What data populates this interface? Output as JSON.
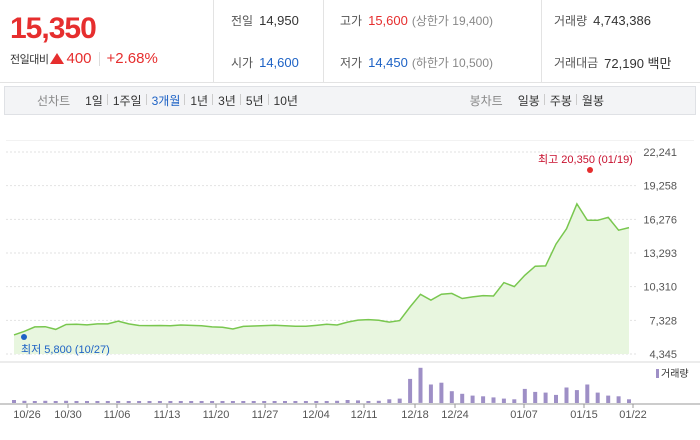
{
  "quote": {
    "price": "15,350",
    "change_label": "전일대비",
    "change_value": "400",
    "change_pct": "+2.68%"
  },
  "stats": {
    "prev_close_label": "전일",
    "prev_close": "14,950",
    "high_label": "고가",
    "high": "15,600",
    "upper_limit": "(상한가 19,400)",
    "volume_label": "거래량",
    "volume": "4,743,386",
    "open_label": "시가",
    "open": "14,600",
    "low_label": "저가",
    "low": "14,450",
    "lower_limit": "(하한가 10,500)",
    "amount_label": "거래대금",
    "amount": "72,190 백만"
  },
  "toolbar": {
    "line_chart_label": "선차트",
    "periods": [
      "1일",
      "1주일",
      "3개월",
      "1년",
      "3년",
      "5년",
      "10년"
    ],
    "active_period": "3개월",
    "candle_chart_label": "봉차트",
    "candles": [
      "일봉",
      "주봉",
      "월봉"
    ]
  },
  "colors": {
    "up": "#e62e2e",
    "down": "#1d62c5",
    "line": "#79c74f",
    "area": "#e8f6df",
    "volume": "#9e8fc6"
  },
  "chart_data": {
    "type": "area",
    "ylim": [
      4345,
      22241
    ],
    "yticks": [
      "22,241",
      "19,258",
      "16,276",
      "13,293",
      "10,310",
      "7,328",
      "4,345"
    ],
    "xticks": [
      "10/26",
      "10/30",
      "11/06",
      "11/13",
      "11/20",
      "11/27",
      "12/04",
      "12/11",
      "12/18",
      "12/24",
      "01/07",
      "01/15",
      "01/22"
    ],
    "price_series": [
      6040,
      6360,
      6750,
      6760,
      6520,
      6960,
      6980,
      6920,
      7010,
      7010,
      7260,
      7010,
      6870,
      6860,
      6870,
      6840,
      6910,
      6880,
      6840,
      6750,
      6720,
      6560,
      6790,
      6830,
      6860,
      6900,
      6840,
      6810,
      6800,
      6880,
      6980,
      6910,
      7170,
      7350,
      7390,
      7330,
      7170,
      7300,
      8520,
      9630,
      9120,
      9640,
      9710,
      9260,
      9400,
      9520,
      9480,
      10670,
      10320,
      11320,
      12120,
      12150,
      14080,
      15440,
      17640,
      16190,
      16190,
      16450,
      15310,
      15540
    ],
    "high_note": "최고 20,350 (01/19)",
    "low_note": "최저 5,800 (10/27)",
    "volume_legend": "거래량",
    "volume_series": [
      0.08,
      0.06,
      0.05,
      0.06,
      0.05,
      0.06,
      0.04,
      0.04,
      0.05,
      0.03,
      0.05,
      0.04,
      0.05,
      0.04,
      0.03,
      0.05,
      0.04,
      0.03,
      0.04,
      0.05,
      0.04,
      0.04,
      0.03,
      0.03,
      0.05,
      0.04,
      0.03,
      0.04,
      0.05,
      0.04,
      0.05,
      0.06,
      0.08,
      0.07,
      0.05,
      0.06,
      0.1,
      0.12,
      0.65,
      0.95,
      0.5,
      0.55,
      0.32,
      0.25,
      0.2,
      0.18,
      0.15,
      0.12,
      0.1,
      0.38,
      0.3,
      0.28,
      0.22,
      0.42,
      0.35,
      0.5,
      0.28,
      0.2,
      0.18,
      0.1
    ]
  }
}
